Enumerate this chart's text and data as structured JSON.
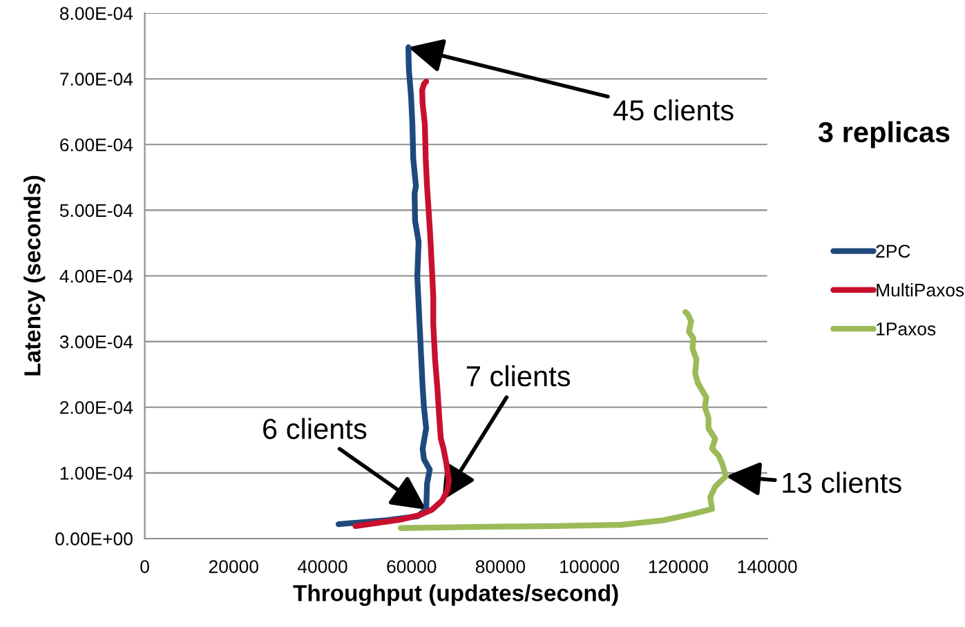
{
  "chart_data": {
    "type": "line",
    "xlabel": "Throughput (updates/second)",
    "ylabel": "Latency (seconds)",
    "xlim": [
      0,
      140000
    ],
    "xticks": [
      0,
      20000,
      40000,
      60000,
      80000,
      100000,
      120000,
      140000
    ],
    "ylim": [
      0,
      0.0008
    ],
    "yticks": [
      {
        "value": 0,
        "label": "0.00E+00"
      },
      {
        "value": 0.0001,
        "label": "1.00E-04"
      },
      {
        "value": 0.0002,
        "label": "2.00E-04"
      },
      {
        "value": 0.0003,
        "label": "3.00E-04"
      },
      {
        "value": 0.0004,
        "label": "4.00E-04"
      },
      {
        "value": 0.0005,
        "label": "5.00E-04"
      },
      {
        "value": 0.0006,
        "label": "6.00E-04"
      },
      {
        "value": 0.0007,
        "label": "7.00E-04"
      },
      {
        "value": 0.0008,
        "label": "8.00E-04"
      }
    ],
    "grid": "y",
    "legend": "right",
    "marker": "none",
    "line_style": "solid",
    "series": [
      {
        "name": "2PC",
        "color": "#1f497d",
        "x": [
          43600,
          54400,
          61400,
          63300,
          63500,
          64100,
          62800,
          62500,
          63300,
          62800,
          62500,
          62200,
          61900,
          61600,
          61300,
          61600,
          60800,
          60700,
          61000,
          60400,
          60200,
          59900,
          59400,
          59300
        ],
        "values": [
          2.2e-05,
          2.8e-05,
          3.4e-05,
          4.4e-05,
          8.4e-05,
          0.000105,
          0.000121,
          0.000137,
          0.000168,
          0.0002,
          0.000231,
          0.000273,
          0.000315,
          0.000357,
          0.000399,
          0.000452,
          0.000484,
          0.000526,
          0.000536,
          0.000578,
          0.000631,
          0.000673,
          0.000715,
          0.000748
        ]
      },
      {
        "name": "MultiPaxos",
        "color": "#c8102e",
        "x": [
          47400,
          57600,
          61900,
          64600,
          66900,
          68100,
          68400,
          67800,
          67200,
          66600,
          66300,
          65800,
          65300,
          64900,
          64900,
          64600,
          64200,
          63800,
          63500,
          63200,
          63000,
          62500,
          62400,
          62800,
          63300
        ],
        "values": [
          1.9e-05,
          2.9e-05,
          3.6e-05,
          4.4e-05,
          5.8e-05,
          7.4e-05,
          8.9e-05,
          0.000116,
          0.000137,
          0.000152,
          0.000179,
          0.000231,
          0.000273,
          0.000326,
          0.000368,
          0.00041,
          0.000463,
          0.000505,
          0.000536,
          0.000578,
          0.000631,
          0.000662,
          0.000683,
          0.000692,
          0.000696
        ]
      },
      {
        "name": "1Paxos",
        "color": "#9bbb59",
        "x": [
          57600,
          76200,
          91800,
          107300,
          116700,
          122900,
          127600,
          127200,
          128300,
          130700,
          129900,
          129100,
          127600,
          128300,
          126800,
          126800,
          126000,
          126300,
          124400,
          123800,
          124100,
          123200,
          123400,
          122400,
          122900,
          122100,
          121600
        ],
        "values": [
          1.6e-05,
          1.8e-05,
          1.9e-05,
          2.1e-05,
          2.8e-05,
          3.7e-05,
          4.5e-05,
          6.3e-05,
          7.9e-05,
          9.5e-05,
          0.000114,
          0.000126,
          0.000137,
          0.000152,
          0.000168,
          0.000184,
          0.0002,
          0.000215,
          0.000237,
          0.000252,
          0.000273,
          0.000289,
          0.000305,
          0.000315,
          0.000331,
          0.000342,
          0.000345
        ]
      }
    ],
    "annotations": [
      {
        "text": "45 clients",
        "x": 59300,
        "y": 0.000748
      },
      {
        "text": "6 clients",
        "x": 63300,
        "y": 4.4e-05
      },
      {
        "text": "7 clients",
        "x": 66900,
        "y": 5.8e-05
      },
      {
        "text": "13 clients",
        "x": 130700,
        "y": 9.5e-05
      },
      "3 replicas"
    ]
  }
}
